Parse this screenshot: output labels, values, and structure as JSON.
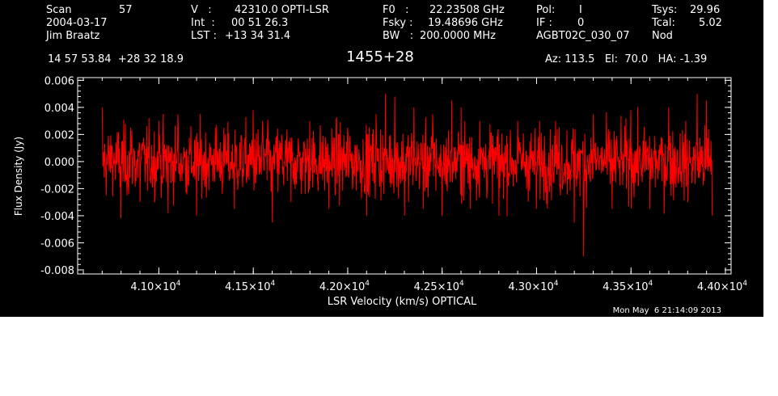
{
  "header": {
    "scan_label": "Scan",
    "scan_number": "57",
    "date": "2004-03-17",
    "observer": "Jim Braatz",
    "velocity_label": "V   :",
    "velocity_value": "42310.0 OPTI-LSR",
    "int_label": "Int  :",
    "int_value": "00 51 26.3",
    "lst_label": "LST :",
    "lst_value": "+13 34 31.4",
    "f0_label": "F0   :",
    "f0_value": "22.23508 GHz",
    "fsky_label": "Fsky :",
    "fsky_value": "19.48696 GHz",
    "bw_label": "BW   :",
    "bw_value": "200.0000 MHz",
    "pol_label": "Pol:",
    "pol_value": "I",
    "if_label": "IF :",
    "if_value": "0",
    "project": "AGBT02C_030_07",
    "tsys_label": "Tsys:",
    "tsys_value": "29.96",
    "tcal_label": "Tcal:",
    "tcal_value": "5.02",
    "mode": "Nod",
    "coordinates": "14 57 53.84  +28 32 18.9",
    "source": "1455+28",
    "az_el_ha": "Az: 113.5   El:  70.0   HA: -1.39",
    "timestamp": "Mon May  6 21:14:09 2013"
  },
  "colors": {
    "background": "#000000",
    "foreground": "#ffffff",
    "trace": "#ff0000"
  },
  "chart_data": {
    "type": "line",
    "title": "1455+28",
    "xlabel": "LSR Velocity (km/s) OPTICAL",
    "ylabel": "Flux Density (Jy)",
    "xlim": [
      40570,
      44030
    ],
    "ylim": [
      -0.0083,
      0.0062
    ],
    "x_ticks": [
      41000,
      41500,
      42000,
      42500,
      43000,
      43500,
      44000
    ],
    "x_tick_mantissas": [
      "4.10×10",
      "4.15×10",
      "4.20×10",
      "4.25×10",
      "4.30×10",
      "4.35×10",
      "4.40×10"
    ],
    "x_tick_exponent": "4",
    "y_ticks": [
      -0.008,
      -0.006,
      -0.004,
      -0.002,
      0.0,
      0.002,
      0.004,
      0.006
    ],
    "y_tick_labels": [
      "-0.008",
      "-0.006",
      "-0.004",
      "-0.002",
      "0.000",
      "0.002",
      "0.004",
      "0.006"
    ],
    "grid": false,
    "series": [
      {
        "color": "#ff0000",
        "x_start": 40700,
        "x_end": 43930,
        "noise_rms": 0.0015,
        "points": [
          [
            40700,
            0.004
          ],
          [
            40750,
            0.001
          ],
          [
            40800,
            -0.0042
          ],
          [
            40850,
            0.0025
          ],
          [
            40900,
            -0.003
          ],
          [
            41000,
            0.003
          ],
          [
            41050,
            -0.0038
          ],
          [
            41100,
            0.0035
          ],
          [
            41200,
            -0.004
          ],
          [
            41300,
            0.0025
          ],
          [
            41400,
            -0.0035
          ],
          [
            41500,
            0.0038
          ],
          [
            41550,
            0.003
          ],
          [
            41600,
            -0.0045
          ],
          [
            41650,
            0.002
          ],
          [
            41700,
            -0.003
          ],
          [
            41800,
            0.003
          ],
          [
            41900,
            -0.0035
          ],
          [
            42000,
            0.0025
          ],
          [
            42100,
            -0.004
          ],
          [
            42150,
            0.0035
          ],
          [
            42200,
            0.005
          ],
          [
            42250,
            0.0048
          ],
          [
            42300,
            -0.004
          ],
          [
            42350,
            0.004
          ],
          [
            42400,
            -0.0035
          ],
          [
            42450,
            0.0035
          ],
          [
            42500,
            -0.004
          ],
          [
            42550,
            0.0045
          ],
          [
            42600,
            0.004
          ],
          [
            42650,
            -0.0035
          ],
          [
            42700,
            0.003
          ],
          [
            42800,
            -0.004
          ],
          [
            42900,
            0.003
          ],
          [
            43000,
            -0.0035
          ],
          [
            43100,
            0.003
          ],
          [
            43200,
            -0.0045
          ],
          [
            43250,
            -0.007
          ],
          [
            43300,
            0.0035
          ],
          [
            43400,
            -0.0035
          ],
          [
            43500,
            0.0038
          ],
          [
            43600,
            -0.0035
          ],
          [
            43700,
            0.004
          ],
          [
            43800,
            -0.003
          ],
          [
            43850,
            0.005
          ],
          [
            43900,
            0.0045
          ],
          [
            43930,
            -0.004
          ]
        ]
      }
    ]
  }
}
